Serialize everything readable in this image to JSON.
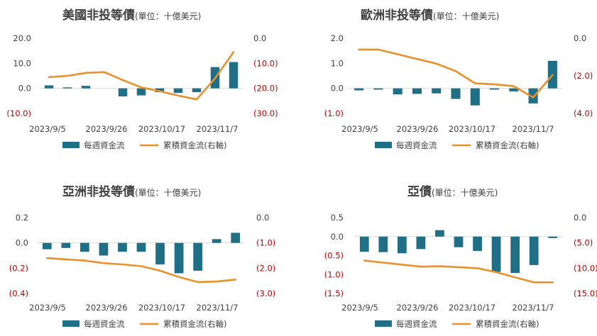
{
  "chart_data": [
    {
      "type": "bar+line",
      "title": "美國非投等債",
      "unit": "(單位：十億美元)",
      "x_tick_labels": [
        "2023/9/5",
        "2023/9/26",
        "2023/10/17",
        "2023/11/7"
      ],
      "left_ticks": [
        "20.0",
        "10.0",
        "0.0",
        "(10.0)"
      ],
      "right_ticks": [
        "0.0",
        "(10.0)",
        "(20.0)",
        "(30.0)"
      ],
      "ylim_left": [
        -10,
        20
      ],
      "ylim_right": [
        -30,
        0
      ],
      "series": [
        {
          "name": "每週資金流",
          "kind": "bar",
          "color": "#1f6f86",
          "values": [
            1.2,
            0.4,
            1.0,
            0,
            -3.2,
            -2.8,
            -1.5,
            -1.8,
            -1.5,
            8.5,
            10.5
          ]
        },
        {
          "name": "累積資金流(右軸)",
          "kind": "line",
          "color": "#e8912c",
          "values": [
            -15.5,
            -15.0,
            -13.8,
            -13.5,
            -16.7,
            -19.6,
            -21.1,
            -22.9,
            -24.4,
            -16.0,
            -5.5
          ]
        }
      ]
    },
    {
      "type": "bar+line",
      "title": "歐洲非投等債",
      "unit": "(單位：十億美元)",
      "x_tick_labels": [
        "2023/9/5",
        "2023/9/26",
        "2023/10/17",
        "2023/11/7"
      ],
      "left_ticks": [
        "2.0",
        "1.0",
        "0.0",
        "(1.0)"
      ],
      "right_ticks": [
        "0.0",
        "(2.0)",
        "(4.0)"
      ],
      "ylim_left": [
        -1,
        2
      ],
      "ylim_right": [
        -4,
        0
      ],
      "series": [
        {
          "name": "每週資金流",
          "kind": "bar",
          "color": "#1f6f86",
          "values": [
            -0.08,
            -0.05,
            -0.24,
            -0.22,
            -0.2,
            -0.42,
            -0.68,
            -0.05,
            -0.12,
            -0.6,
            1.1
          ]
        },
        {
          "name": "累積資金流(右軸)",
          "kind": "line",
          "color": "#e8912c",
          "values": [
            -0.6,
            -0.6,
            -0.85,
            -1.1,
            -1.35,
            -1.75,
            -2.4,
            -2.45,
            -2.55,
            -3.15,
            -1.95
          ]
        }
      ]
    },
    {
      "type": "bar+line",
      "title": "亞洲非投等債",
      "unit": "(單位：十億美元)",
      "x_tick_labels": [
        "2023/9/5",
        "2023/9/26",
        "2023/10/17",
        "2023/11/7"
      ],
      "left_ticks": [
        "0.2",
        "0.0",
        "(0.2)",
        "(0.4)"
      ],
      "right_ticks": [
        "0.0",
        "(1.0)",
        "(2.0)",
        "(3.0)"
      ],
      "ylim_left": [
        -0.4,
        0.2
      ],
      "ylim_right": [
        -3,
        0
      ],
      "series": [
        {
          "name": "每週資金流",
          "kind": "bar",
          "color": "#1f6f86",
          "values": [
            -0.05,
            -0.04,
            -0.07,
            -0.1,
            -0.07,
            -0.07,
            -0.17,
            -0.24,
            -0.22,
            0.03,
            0.08
          ]
        },
        {
          "name": "累積資金流(右軸)",
          "kind": "line",
          "color": "#e8912c",
          "values": [
            -1.6,
            -1.65,
            -1.7,
            -1.8,
            -1.85,
            -1.92,
            -2.1,
            -2.35,
            -2.55,
            -2.53,
            -2.45
          ]
        }
      ]
    },
    {
      "type": "bar+line",
      "title": "亞債",
      "unit": "(單位：十億美元)",
      "x_tick_labels": [
        "2023/9/5",
        "2023/9/26",
        "2023/10/17",
        "2023/11/7"
      ],
      "left_ticks": [
        "0.5",
        "0.0",
        "(0.5)",
        "(1.0)",
        "(1.5)"
      ],
      "right_ticks": [
        "0.0",
        "(5.0)",
        "(10.0)",
        "(15.0)"
      ],
      "ylim_left": [
        -1.5,
        0.5
      ],
      "ylim_right": [
        -15,
        0
      ],
      "series": [
        {
          "name": "每週資金流",
          "kind": "bar",
          "color": "#1f6f86",
          "values": [
            -0.4,
            -0.41,
            -0.44,
            -0.33,
            0.17,
            -0.28,
            -0.38,
            -0.93,
            -0.96,
            -0.75,
            -0.04
          ]
        },
        {
          "name": "累積資金流(右軸)",
          "kind": "line",
          "color": "#e8912c",
          "values": [
            -8.5,
            -8.9,
            -9.3,
            -9.7,
            -9.6,
            -9.8,
            -10.0,
            -10.8,
            -11.8,
            -12.8,
            -12.8
          ]
        }
      ]
    }
  ],
  "legend": {
    "bar_label": "每週資金流",
    "line_label": "累積資金流(右軸)"
  },
  "colors": {
    "bar": "#1f6f86",
    "line": "#e8912c",
    "negative_tick": "#c00000",
    "text": "#404040"
  }
}
